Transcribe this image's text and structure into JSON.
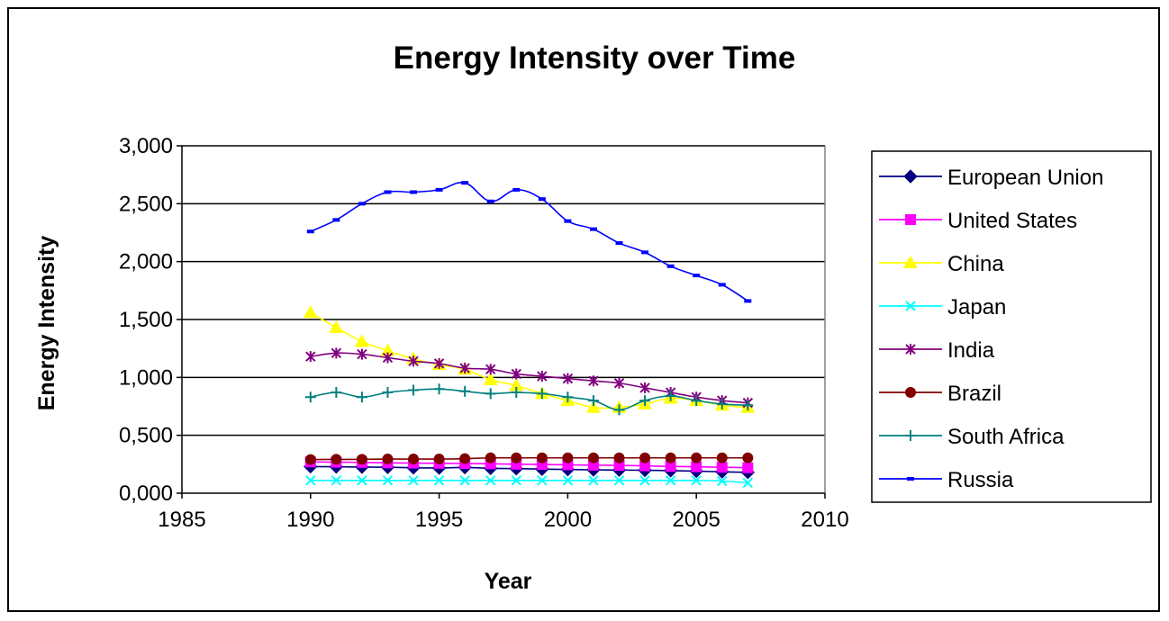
{
  "chart_data": {
    "type": "line",
    "title": "Energy Intensity over Time",
    "xlabel": "Year",
    "ylabel": "Energy Intensity",
    "xlim": [
      1985,
      2010
    ],
    "ylim": [
      0,
      3000
    ],
    "x_ticks": [
      1985,
      1990,
      1995,
      2000,
      2005,
      2010
    ],
    "x_tick_labels": [
      "1985",
      "1990",
      "1995",
      "2000",
      "2005",
      "2010"
    ],
    "y_ticks": [
      0,
      500,
      1000,
      1500,
      2000,
      2500,
      3000
    ],
    "y_tick_labels": [
      "0,000",
      "0,500",
      "1,000",
      "1,500",
      "2,000",
      "2,500",
      "3,000"
    ],
    "grid": "horizontal",
    "legend_position": "right",
    "x": [
      1990,
      1991,
      1992,
      1993,
      1994,
      1995,
      1996,
      1997,
      1998,
      1999,
      2000,
      2001,
      2002,
      2003,
      2004,
      2005,
      2006,
      2007
    ],
    "series": [
      {
        "name": "European Union",
        "color": "#000080",
        "marker": "diamond",
        "values": [
          230,
          228,
          226,
          224,
          220,
          218,
          222,
          215,
          212,
          208,
          205,
          202,
          200,
          198,
          195,
          190,
          185,
          180
        ]
      },
      {
        "name": "United States",
        "color": "#ff00ff",
        "marker": "square",
        "values": [
          270,
          268,
          266,
          262,
          260,
          258,
          256,
          254,
          250,
          248,
          245,
          242,
          240,
          236,
          232,
          228,
          224,
          220
        ]
      },
      {
        "name": "China",
        "color": "#ffff00",
        "marker": "triangle",
        "values": [
          1560,
          1430,
          1310,
          1230,
          1160,
          1110,
          1070,
          980,
          930,
          860,
          800,
          740,
          740,
          770,
          820,
          800,
          760,
          740
        ]
      },
      {
        "name": "Japan",
        "color": "#00ffff",
        "marker": "x",
        "values": [
          110,
          110,
          110,
          110,
          110,
          110,
          110,
          110,
          110,
          110,
          110,
          110,
          110,
          110,
          110,
          110,
          105,
          90
        ]
      },
      {
        "name": "India",
        "color": "#800080",
        "marker": "star",
        "values": [
          1180,
          1210,
          1200,
          1170,
          1140,
          1120,
          1080,
          1070,
          1030,
          1010,
          990,
          970,
          950,
          910,
          870,
          830,
          800,
          780
        ]
      },
      {
        "name": "Brazil",
        "color": "#800000",
        "marker": "circle",
        "values": [
          290,
          292,
          292,
          295,
          295,
          295,
          298,
          305,
          305,
          305,
          305,
          305,
          305,
          305,
          305,
          305,
          305,
          305
        ]
      },
      {
        "name": "South Africa",
        "color": "#008080",
        "marker": "plus",
        "values": [
          830,
          870,
          830,
          870,
          890,
          900,
          880,
          860,
          870,
          860,
          830,
          800,
          720,
          800,
          840,
          800,
          770,
          760
        ]
      },
      {
        "name": "Russia",
        "color": "#0000ff",
        "marker": "dash",
        "values": [
          2260,
          2360,
          2500,
          2600,
          2600,
          2620,
          2680,
          2520,
          2620,
          2540,
          2350,
          2280,
          2160,
          2080,
          1960,
          1880,
          1800,
          1660
        ]
      }
    ]
  }
}
